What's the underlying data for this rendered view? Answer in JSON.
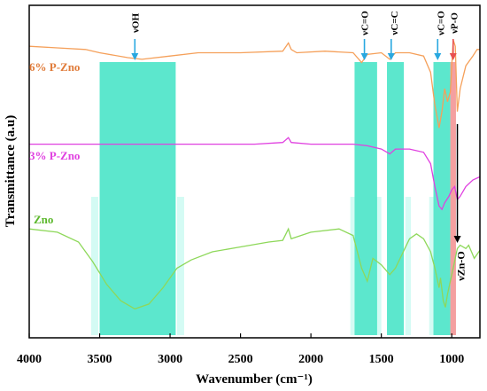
{
  "chart_data": {
    "type": "line",
    "xlabel": "Wavenumber (cm⁻¹)",
    "ylabel": "Transmittance (a.u)",
    "xlim": [
      4000,
      800
    ],
    "x_ticks": [
      4000,
      3500,
      3000,
      2500,
      2000,
      1500,
      1000
    ],
    "y_ticks_shown": false,
    "colors": {
      "band": "#3fe3c4",
      "band_light": "#d4fbf4",
      "band_red": "#f08080",
      "arrow_blue": "#29a8e0",
      "arrow_red": "#e85050"
    },
    "series": [
      {
        "name": "6% P-Zno",
        "color": "#f5a05a",
        "label_color": "#e07b39",
        "points": [
          [
            4000,
            0.88
          ],
          [
            3800,
            0.875
          ],
          [
            3600,
            0.87
          ],
          [
            3500,
            0.86
          ],
          [
            3300,
            0.845
          ],
          [
            3200,
            0.84
          ],
          [
            3000,
            0.85
          ],
          [
            2800,
            0.86
          ],
          [
            2500,
            0.86
          ],
          [
            2200,
            0.865
          ],
          [
            2160,
            0.89
          ],
          [
            2140,
            0.87
          ],
          [
            2100,
            0.86
          ],
          [
            1900,
            0.865
          ],
          [
            1700,
            0.86
          ],
          [
            1640,
            0.83
          ],
          [
            1600,
            0.855
          ],
          [
            1500,
            0.86
          ],
          [
            1440,
            0.84
          ],
          [
            1400,
            0.86
          ],
          [
            1300,
            0.86
          ],
          [
            1200,
            0.85
          ],
          [
            1150,
            0.8
          ],
          [
            1120,
            0.7
          ],
          [
            1090,
            0.63
          ],
          [
            1070,
            0.68
          ],
          [
            1050,
            0.75
          ],
          [
            1030,
            0.71
          ],
          [
            1010,
            0.74
          ],
          [
            990,
            0.9
          ],
          [
            975,
            0.88
          ],
          [
            960,
            0.68
          ],
          [
            940,
            0.75
          ],
          [
            900,
            0.82
          ],
          [
            850,
            0.85
          ],
          [
            820,
            0.87
          ],
          [
            800,
            0.87
          ]
        ]
      },
      {
        "name": "3% P-Zno",
        "color": "#e040e0",
        "label_color": "#e040e0",
        "points": [
          [
            4000,
            0.58
          ],
          [
            3600,
            0.58
          ],
          [
            3200,
            0.58
          ],
          [
            2800,
            0.58
          ],
          [
            2400,
            0.58
          ],
          [
            2200,
            0.585
          ],
          [
            2160,
            0.6
          ],
          [
            2140,
            0.585
          ],
          [
            2000,
            0.58
          ],
          [
            1800,
            0.58
          ],
          [
            1700,
            0.58
          ],
          [
            1600,
            0.575
          ],
          [
            1500,
            0.565
          ],
          [
            1440,
            0.55
          ],
          [
            1400,
            0.565
          ],
          [
            1300,
            0.565
          ],
          [
            1200,
            0.555
          ],
          [
            1150,
            0.52
          ],
          [
            1120,
            0.45
          ],
          [
            1090,
            0.39
          ],
          [
            1070,
            0.38
          ],
          [
            1050,
            0.4
          ],
          [
            1020,
            0.42
          ],
          [
            1000,
            0.44
          ],
          [
            980,
            0.45
          ],
          [
            960,
            0.41
          ],
          [
            940,
            0.42
          ],
          [
            900,
            0.45
          ],
          [
            850,
            0.47
          ],
          [
            800,
            0.48
          ]
        ]
      },
      {
        "name": "Zno",
        "color": "#8ed85a",
        "label_color": "#5cb82c",
        "points": [
          [
            4000,
            0.32
          ],
          [
            3800,
            0.31
          ],
          [
            3650,
            0.28
          ],
          [
            3550,
            0.22
          ],
          [
            3450,
            0.15
          ],
          [
            3350,
            0.1
          ],
          [
            3250,
            0.075
          ],
          [
            3150,
            0.09
          ],
          [
            3050,
            0.14
          ],
          [
            2950,
            0.2
          ],
          [
            2850,
            0.225
          ],
          [
            2700,
            0.25
          ],
          [
            2500,
            0.265
          ],
          [
            2300,
            0.28
          ],
          [
            2200,
            0.285
          ],
          [
            2160,
            0.32
          ],
          [
            2140,
            0.29
          ],
          [
            2000,
            0.31
          ],
          [
            1800,
            0.32
          ],
          [
            1700,
            0.3
          ],
          [
            1640,
            0.2
          ],
          [
            1600,
            0.16
          ],
          [
            1560,
            0.23
          ],
          [
            1500,
            0.21
          ],
          [
            1440,
            0.18
          ],
          [
            1400,
            0.2
          ],
          [
            1300,
            0.29
          ],
          [
            1250,
            0.305
          ],
          [
            1200,
            0.29
          ],
          [
            1150,
            0.25
          ],
          [
            1120,
            0.2
          ],
          [
            1090,
            0.14
          ],
          [
            1080,
            0.17
          ],
          [
            1060,
            0.1
          ],
          [
            1045,
            0.08
          ],
          [
            1030,
            0.12
          ],
          [
            1000,
            0.18
          ],
          [
            980,
            0.22
          ],
          [
            960,
            0.26
          ],
          [
            940,
            0.27
          ],
          [
            900,
            0.26
          ],
          [
            880,
            0.27
          ],
          [
            860,
            0.25
          ],
          [
            840,
            0.23
          ],
          [
            800,
            0.255
          ]
        ]
      }
    ],
    "bands": [
      {
        "x0": 3500,
        "x1": 2960,
        "label": "νOH",
        "arrow_x": 3250,
        "label_x": 3250
      },
      {
        "x0": 1690,
        "x1": 1530,
        "label": "νC=O",
        "arrow_x": 1620,
        "label_x": 1620
      },
      {
        "x0": 1460,
        "x1": 1340,
        "label": "νC=C",
        "arrow_x": 1430,
        "label_x": 1410
      },
      {
        "x0": 1130,
        "x1": 1010,
        "label": "νC=O",
        "arrow_x": 1100,
        "label_x": 1080
      },
      {
        "x0": 1010,
        "x1": 970,
        "label": "νP-O",
        "arrow_x": 990,
        "label_x": 985,
        "red": true
      }
    ],
    "light_bands": [
      {
        "x0": 3560,
        "x1": 3510
      },
      {
        "x0": 2950,
        "x1": 2900
      },
      {
        "x0": 1720,
        "x1": 1690
      },
      {
        "x0": 1540,
        "x1": 1500
      },
      {
        "x0": 1330,
        "x1": 1290
      },
      {
        "x0": 1160,
        "x1": 1130
      }
    ],
    "zno_annotation": {
      "label": "νZn-O",
      "x": 960
    }
  }
}
